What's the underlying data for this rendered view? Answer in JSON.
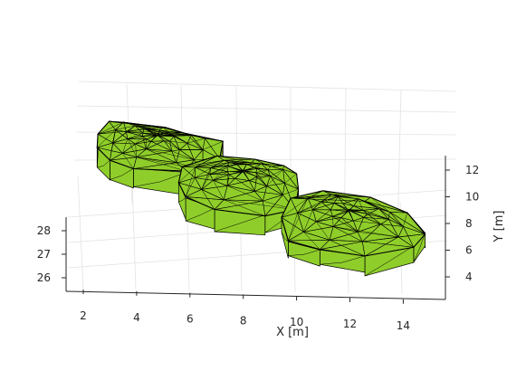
{
  "chart_data": {
    "type": "surface",
    "title": "",
    "xlabel": "X [m]",
    "ylabel": "Y [m]",
    "zlabel": "",
    "x_ticks": [
      "2",
      "4",
      "6",
      "8",
      "10",
      "12",
      "14"
    ],
    "y_ticks": [
      "4",
      "6",
      "8",
      "10",
      "12"
    ],
    "z_ticks": [
      "26",
      "27",
      "28"
    ],
    "xlim": [
      1.5,
      15.5
    ],
    "ylim": [
      2.5,
      13.5
    ],
    "zlim": [
      25.5,
      28.5
    ],
    "grid": true,
    "view": "3-D perspective, looking down the +Y direction from above",
    "face_color": "#8fce2a",
    "edge_color": "#000000",
    "segments": [
      {
        "name": "",
        "outline_xy": [
          [
            2.7,
            12.3
          ],
          [
            4.8,
            12.2
          ],
          [
            5.6,
            11.5
          ],
          [
            7.0,
            11.0
          ],
          [
            6.9,
            10.0
          ],
          [
            6.3,
            9.0
          ],
          [
            5.7,
            8.7
          ],
          [
            3.7,
            9.1
          ],
          [
            2.8,
            9.7
          ],
          [
            2.3,
            10.5
          ],
          [
            2.3,
            11.6
          ]
        ],
        "z_range": [
          26.0,
          27.6
        ]
      },
      {
        "name": "",
        "outline_xy": [
          [
            5.5,
            9.9
          ],
          [
            6.8,
            10.5
          ],
          [
            8.2,
            10.6
          ],
          [
            9.3,
            10.2
          ],
          [
            9.8,
            9.4
          ],
          [
            9.9,
            8.2
          ],
          [
            9.8,
            7.1
          ],
          [
            8.7,
            6.5
          ],
          [
            6.8,
            6.7
          ],
          [
            5.7,
            7.4
          ],
          [
            5.4,
            8.8
          ]
        ],
        "z_range": [
          25.7,
          27.2
        ]
      },
      {
        "name": "",
        "outline_xy": [
          [
            9.6,
            8.6
          ],
          [
            10.8,
            8.8
          ],
          [
            12.6,
            8.5
          ],
          [
            14.0,
            7.3
          ],
          [
            14.7,
            6.2
          ],
          [
            14.3,
            5.0
          ],
          [
            12.5,
            4.1
          ],
          [
            10.8,
            4.6
          ],
          [
            9.6,
            5.3
          ],
          [
            9.3,
            7.0
          ]
        ],
        "z_range": [
          25.4,
          26.8
        ]
      }
    ]
  }
}
